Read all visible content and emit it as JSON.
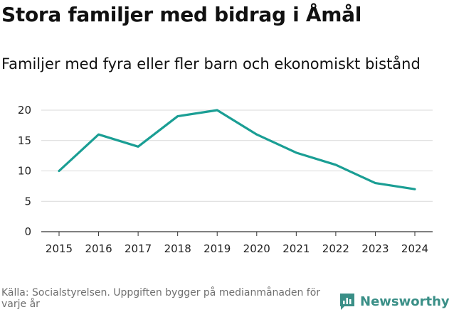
{
  "header": {
    "title": "Stora familjer med bidrag i Åmål",
    "subtitle": "Familjer med fyra eller fler barn och ekonomiskt bistånd"
  },
  "footer": {
    "source": "Källa: Socialstyrelsen. Uppgiften bygger på medianmånaden för varje år",
    "brand": "Newsworthy"
  },
  "colors": {
    "line": "#1a9e94",
    "grid": "#d9d9d9",
    "axis": "#333333",
    "brand": "#3a8f87"
  },
  "chart_data": {
    "type": "line",
    "title": "Stora familjer med bidrag i Åmål",
    "subtitle": "Familjer med fyra eller fler barn och ekonomiskt bistånd",
    "xlabel": "",
    "ylabel": "",
    "x": [
      2015,
      2016,
      2017,
      2018,
      2019,
      2020,
      2021,
      2022,
      2023,
      2024
    ],
    "series": [
      {
        "name": "Familjer",
        "values": [
          10,
          16,
          14,
          19,
          20,
          16,
          13,
          11,
          8,
          7
        ]
      }
    ],
    "ylim": [
      0,
      20
    ],
    "yticks": [
      0,
      5,
      10,
      15,
      20
    ],
    "grid": true,
    "legend": "none"
  }
}
